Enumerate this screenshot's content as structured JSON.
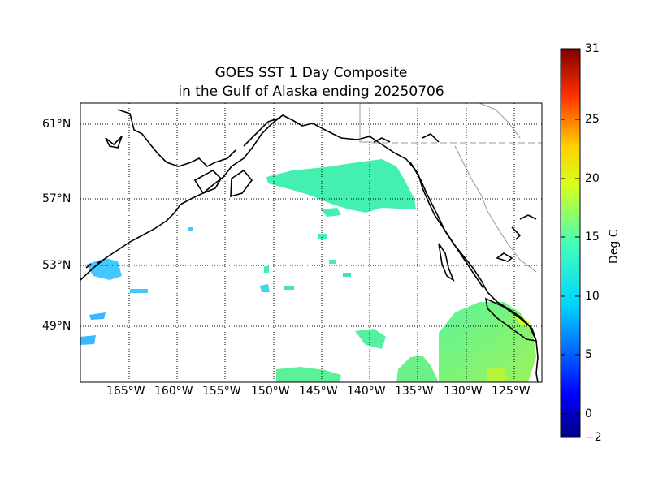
{
  "title": {
    "line1": "GOES SST 1 Day Composite",
    "line2": "in the Gulf of Alaska ending 20250706"
  },
  "map": {
    "lat_labels": [
      "61°N",
      "57°N",
      "53°N",
      "49°N"
    ],
    "lon_labels": [
      "165°W",
      "160°W",
      "155°W",
      "150°W",
      "145°W",
      "140°W",
      "135°W",
      "130°W",
      "125°W"
    ]
  },
  "colorbar": {
    "label": "Deg C",
    "ticks": [
      "31",
      "25",
      "20",
      "15",
      "10",
      "5",
      "0",
      "−2"
    ],
    "range": [
      -2,
      31
    ],
    "colormap": "jet"
  },
  "colors": {
    "land_outline": "#000000",
    "border": "#999999",
    "sst_cool": "#40c8ff",
    "sst_mid": "#44ffb8",
    "sst_warm": "#88ff66"
  }
}
